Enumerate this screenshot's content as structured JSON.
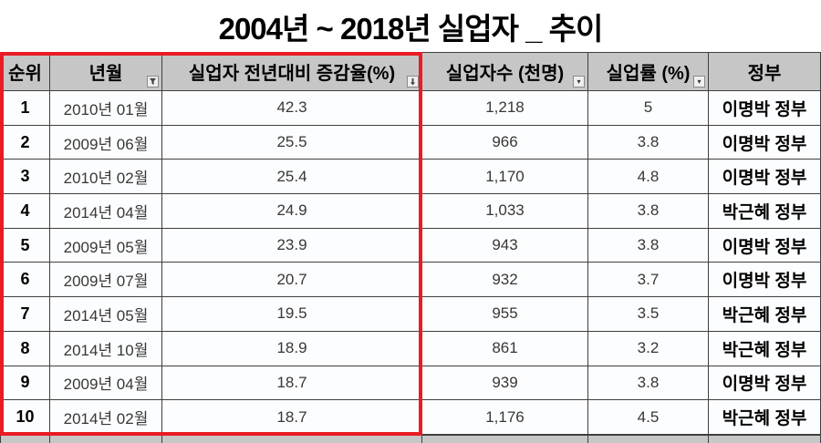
{
  "title": "2004년 ~ 2018년 실업자 _ 추이",
  "colors": {
    "highlight_border": "#e81c24",
    "header_background": "#c6c6c6",
    "grid_line": "#3f3f3f"
  },
  "table": {
    "columns": [
      {
        "label": "순위",
        "filter_icon": "none"
      },
      {
        "label": "년월",
        "filter_icon": "funnel-filter-icon"
      },
      {
        "label": "실업자 전년대비 증감율(%)",
        "filter_icon": "sort-descending-icon"
      },
      {
        "label": "실업자수 (천명)",
        "filter_icon": "dropdown-arrow-icon"
      },
      {
        "label": "실업률 (%)",
        "filter_icon": "dropdown-arrow-icon"
      },
      {
        "label": "정부",
        "filter_icon": "none"
      }
    ],
    "rows": [
      [
        "1",
        "2010년 01월",
        "42.3",
        "1,218",
        "5",
        "이명박 정부"
      ],
      [
        "2",
        "2009년 06월",
        "25.5",
        "966",
        "3.8",
        "이명박 정부"
      ],
      [
        "3",
        "2010년 02월",
        "25.4",
        "1,170",
        "4.8",
        "이명박 정부"
      ],
      [
        "4",
        "2014년 04월",
        "24.9",
        "1,033",
        "3.8",
        "박근혜 정부"
      ],
      [
        "5",
        "2009년 05월",
        "23.9",
        "943",
        "3.8",
        "이명박 정부"
      ],
      [
        "6",
        "2009년 07월",
        "20.7",
        "932",
        "3.7",
        "이명박 정부"
      ],
      [
        "7",
        "2014년 05월",
        "19.5",
        "955",
        "3.5",
        "박근혜 정부"
      ],
      [
        "8",
        "2014년 10월",
        "18.9",
        "861",
        "3.2",
        "박근혜 정부"
      ],
      [
        "9",
        "2009년 04월",
        "18.7",
        "939",
        "3.8",
        "이명박 정부"
      ],
      [
        "10",
        "2014년 02월",
        "18.7",
        "1,176",
        "4.5",
        "박근혜 정부"
      ]
    ]
  }
}
